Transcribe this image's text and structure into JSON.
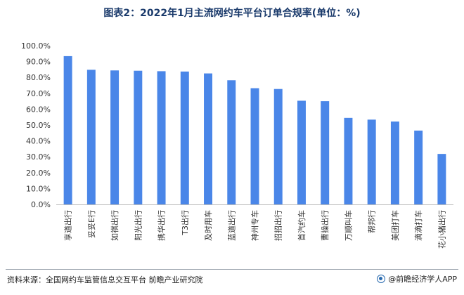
{
  "title": "图表2：2022年1月主流网约车平台订单合规率(单位：%)",
  "footer": {
    "source": "资料来源：全国网约车监管信息交互平台 前瞻产业研究院",
    "brand": "@前瞻经济学人APP"
  },
  "colors": {
    "bar": "#4a86e8",
    "title": "#1a3a6b"
  },
  "chart_data": {
    "type": "bar",
    "title": "图表2：2022年1月主流网约车平台订单合规率(单位：%)",
    "xlabel": "",
    "ylabel": "",
    "ylim": [
      0,
      100
    ],
    "yticks": [
      "0.0%",
      "10.0%",
      "20.0%",
      "30.0%",
      "40.0%",
      "50.0%",
      "60.0%",
      "70.0%",
      "80.0%",
      "90.0%",
      "100.0%"
    ],
    "grid": false,
    "legend": "none",
    "categories": [
      "享道出行",
      "妥妥E行",
      "如祺出行",
      "阳光出行",
      "携华出行",
      "T3出行",
      "及时用车",
      "蓝道出行",
      "神州专车",
      "招招出行",
      "首汽约车",
      "曹操出行",
      "万顺叫车",
      "帮邦行",
      "美团打车",
      "滴滴打车",
      "花小猪出行"
    ],
    "values": [
      93.4,
      84.8,
      84.4,
      84.2,
      83.9,
      83.7,
      82.5,
      78.2,
      73.2,
      72.7,
      65.3,
      65.0,
      54.5,
      53.4,
      52.2,
      46.5,
      31.8
    ]
  }
}
